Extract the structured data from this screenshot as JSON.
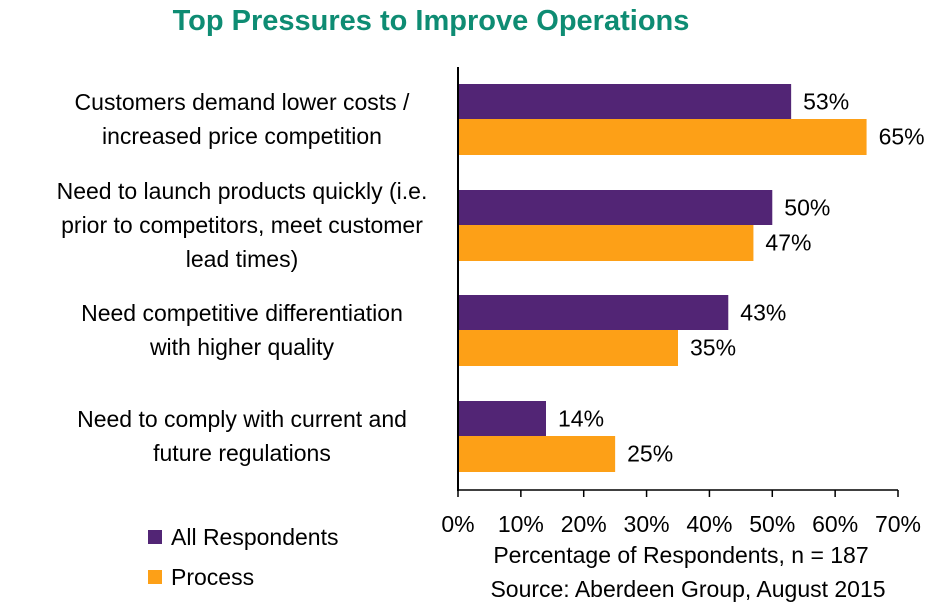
{
  "chart_data": {
    "type": "bar",
    "orientation": "horizontal",
    "title": "Top Pressures to Improve Operations",
    "categories": [
      [
        "Customers demand lower costs /",
        "increased price competition"
      ],
      [
        "Need to launch products quickly (i.e.",
        "prior to competitors, meet customer",
        "lead times)"
      ],
      [
        "Need competitive differentiation",
        "with higher quality"
      ],
      [
        "Need to comply with current and",
        "future regulations"
      ]
    ],
    "series": [
      {
        "name": "All Respondents",
        "color": "#522575",
        "values": [
          53,
          50,
          43,
          14
        ]
      },
      {
        "name": "Process",
        "color": "#FDA017",
        "values": [
          65,
          47,
          35,
          25
        ]
      }
    ],
    "value_labels": {
      "All Respondents": [
        "53%",
        "50%",
        "43%",
        "14%"
      ],
      "Process": [
        "65%",
        "47%",
        "35%",
        "25%"
      ]
    },
    "xlim": [
      0,
      70
    ],
    "x_ticks": [
      "0%",
      "10%",
      "20%",
      "30%",
      "40%",
      "50%",
      "60%",
      "70%"
    ],
    "xlabel": "Percentage of Respondents, n = 187",
    "source": "Source: Aberdeen Group, August 2015",
    "legend_position": "bottom-left",
    "grid": false,
    "title_color": "#0E8C73"
  }
}
